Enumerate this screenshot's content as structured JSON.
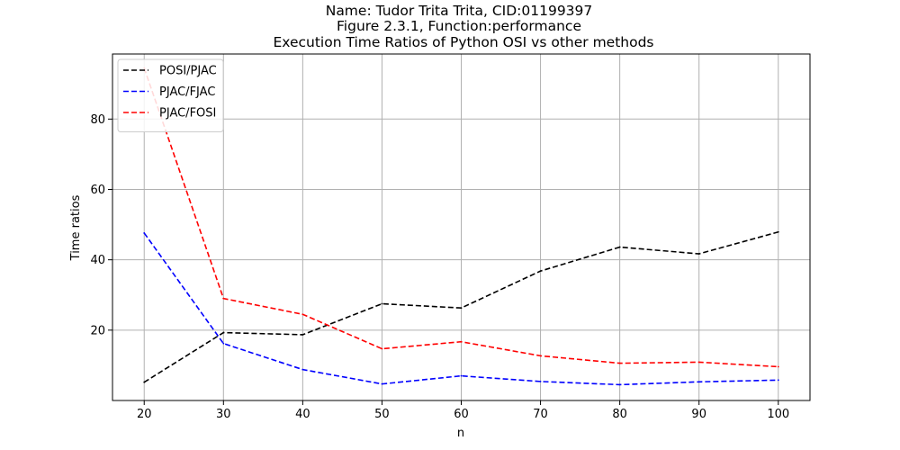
{
  "chart_data": {
    "type": "line",
    "title_lines": [
      "Name: Tudor Trita Trita, CID:01199397",
      "Figure 2.3.1, Function:performance",
      "Execution Time Ratios of Python OSI vs other methods"
    ],
    "xlabel": "n",
    "ylabel": "Time ratios",
    "x": [
      20,
      30,
      40,
      50,
      60,
      70,
      80,
      90,
      100
    ],
    "xticks": [
      "20",
      "30",
      "40",
      "50",
      "60",
      "70",
      "80",
      "90",
      "100"
    ],
    "yticks": [
      "20",
      "40",
      "60",
      "80"
    ],
    "xlim": [
      16,
      104
    ],
    "ylim": [
      0,
      98.5
    ],
    "grid": true,
    "legend_position": "top-left",
    "series": [
      {
        "name": "POSI/PJAC",
        "color": "#000000",
        "style": "dashed",
        "values": [
          5.2,
          19.3,
          18.7,
          27.5,
          26.3,
          36.8,
          43.6,
          41.7,
          47.9
        ]
      },
      {
        "name": "PJAC/FJAC",
        "color": "#0000ff",
        "style": "dashed",
        "values": [
          47.6,
          16.2,
          8.8,
          4.7,
          7.0,
          5.4,
          4.5,
          5.3,
          5.8
        ]
      },
      {
        "name": "PJAC/FOSI",
        "color": "#ff0000",
        "style": "dashed",
        "values": [
          94.5,
          29.0,
          24.5,
          14.7,
          16.7,
          12.7,
          10.6,
          10.9,
          9.6
        ]
      }
    ]
  }
}
